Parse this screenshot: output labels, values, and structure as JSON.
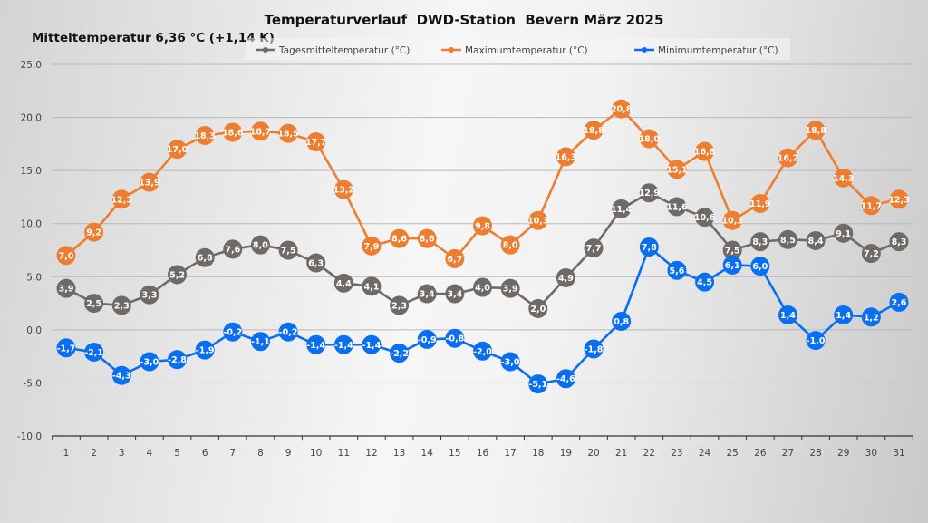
{
  "chart_data": {
    "type": "line",
    "title": "Temperaturverlauf  DWD-Station  Bevern März 2025",
    "subtitle": "Mitteltemperatur 6,36 °C (+1,14 K)",
    "xlabel": "",
    "ylabel": "",
    "ylim": [
      -10,
      25
    ],
    "y_ticks": [
      25,
      20,
      15,
      10,
      5,
      0,
      -5,
      -10
    ],
    "y_tick_labels": [
      "25,0",
      "20,0",
      "15,0",
      "10,0",
      "5,0",
      "0,0",
      "-5,0",
      "-10,0"
    ],
    "grid": true,
    "legend_position": "top",
    "x": [
      1,
      2,
      3,
      4,
      5,
      6,
      7,
      8,
      9,
      10,
      11,
      12,
      13,
      14,
      15,
      16,
      17,
      18,
      19,
      20,
      21,
      22,
      23,
      24,
      25,
      26,
      27,
      28,
      29,
      30,
      31
    ],
    "series": [
      {
        "name": "Tagesmitteltemperatur (°C)",
        "color": "#6f6a66",
        "values": [
          3.9,
          2.5,
          2.3,
          3.3,
          5.2,
          6.8,
          7.6,
          8.0,
          7.5,
          6.3,
          4.4,
          4.1,
          2.3,
          3.4,
          3.4,
          4.0,
          3.9,
          2.0,
          4.9,
          7.7,
          11.4,
          12.9,
          11.6,
          10.6,
          7.5,
          8.3,
          8.5,
          8.4,
          9.1,
          7.2,
          8.3
        ]
      },
      {
        "name": "Maximumtemperatur (°C)",
        "color": "#ed7d31",
        "values": [
          7.0,
          9.2,
          12.3,
          13.9,
          17.0,
          18.3,
          18.6,
          18.7,
          18.5,
          17.7,
          13.2,
          7.9,
          8.6,
          8.6,
          6.7,
          9.8,
          8.0,
          10.3,
          16.3,
          18.8,
          20.8,
          18.0,
          15.1,
          16.8,
          10.3,
          11.9,
          16.2,
          18.8,
          14.3,
          11.7,
          12.3
        ]
      },
      {
        "name": "Minimumtemperatur (°C)",
        "color": "#0a6ef0",
        "values": [
          -1.7,
          -2.1,
          -4.3,
          -3.0,
          -2.8,
          -1.9,
          -0.2,
          -1.1,
          -0.2,
          -1.4,
          -1.4,
          -1.4,
          -2.2,
          -0.9,
          -0.8,
          -2.0,
          -3.0,
          -5.1,
          -4.6,
          -1.8,
          0.8,
          7.8,
          5.6,
          4.5,
          6.1,
          6.0,
          1.4,
          -1.0,
          1.4,
          1.2,
          2.6
        ]
      }
    ],
    "decimal_separator": ","
  }
}
